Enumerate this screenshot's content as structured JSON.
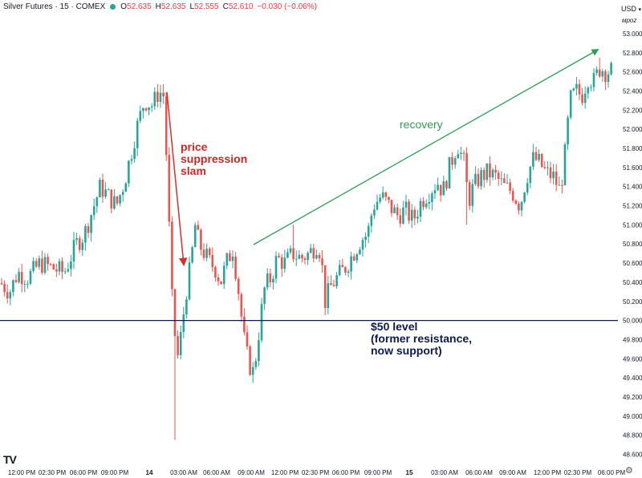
{
  "header": {
    "title": "Silver Futures · 15 · COMEX",
    "open_label": "O",
    "open": "52.635",
    "high_label": "H",
    "high": "52.635",
    "low_label": "L",
    "low": "52.555",
    "close_label": "C",
    "close": "52.610",
    "change": "−0.030 (−0.06%)"
  },
  "price_axis": {
    "currency": "USD",
    "mode_label": "мроz",
    "ticks": [
      "53.000",
      "52.800",
      "52.600",
      "52.400",
      "52.200",
      "52.000",
      "51.800",
      "51.600",
      "51.400",
      "51.200",
      "51.000",
      "50.800",
      "50.600",
      "50.400",
      "50.200",
      "50.000",
      "49.800",
      "49.600",
      "49.400",
      "49.200",
      "49.000",
      "48.800",
      "48.600"
    ]
  },
  "time_axis": {
    "ticks": [
      "12:00 PM",
      "02:30 PM",
      "06:00 PM",
      "09:00 PM",
      "14",
      "03:00 AM",
      "06:00 AM",
      "09:00 AM",
      "12:00 PM",
      "02:30 PM",
      "06:00 PM",
      "09:00 PM",
      "15",
      "03:00 AM",
      "06:00 AM",
      "09:00 AM",
      "12:00 PM",
      "02:30 PM",
      "06:00 PM"
    ]
  },
  "annotations": {
    "slam": "price\nsuppression\nslam",
    "recovery": "recovery",
    "level": "$50 level\n(former resistance,\nnow support)"
  },
  "branding": {
    "logo": "TV"
  },
  "colors": {
    "up": "#26a69a",
    "down": "#ef5350",
    "slam": "#d32f2f",
    "recovery": "#2e9e55",
    "level": "#0d1a4a",
    "axis_text": "#131722"
  },
  "chart_data": {
    "type": "candlestick",
    "title": "Silver Futures · 15 · COMEX",
    "ylim": [
      48.5,
      53.1
    ],
    "level_line": 50.0,
    "path": [
      [
        0,
        50.4
      ],
      [
        12,
        50.3
      ],
      [
        22,
        50.5
      ],
      [
        35,
        50.45
      ],
      [
        50,
        50.6
      ],
      [
        65,
        50.55
      ],
      [
        80,
        50.5
      ],
      [
        95,
        50.8
      ],
      [
        105,
        50.9
      ],
      [
        115,
        51.15
      ],
      [
        125,
        51.4
      ],
      [
        135,
        51.3
      ],
      [
        145,
        51.2
      ],
      [
        155,
        51.45
      ],
      [
        162,
        51.7
      ],
      [
        170,
        52.0
      ],
      [
        180,
        52.3
      ],
      [
        190,
        52.25
      ],
      [
        198,
        52.4
      ],
      [
        204,
        52.35
      ],
      [
        208,
        51.6
      ],
      [
        212,
        50.7
      ],
      [
        215,
        50.1
      ],
      [
        218,
        49.85
      ],
      [
        222,
        49.6
      ],
      [
        227,
        49.95
      ],
      [
        232,
        50.3
      ],
      [
        238,
        50.6
      ],
      [
        243,
        51.0
      ],
      [
        248,
        50.8
      ],
      [
        255,
        50.7
      ],
      [
        262,
        50.6
      ],
      [
        268,
        50.55
      ],
      [
        275,
        50.4
      ],
      [
        282,
        50.6
      ],
      [
        290,
        50.75
      ],
      [
        296,
        50.4
      ],
      [
        300,
        50.1
      ],
      [
        305,
        49.75
      ],
      [
        310,
        49.55
      ],
      [
        316,
        49.45
      ],
      [
        320,
        49.7
      ],
      [
        325,
        50.05
      ],
      [
        330,
        50.35
      ],
      [
        338,
        50.45
      ],
      [
        345,
        50.65
      ],
      [
        355,
        50.6
      ],
      [
        365,
        50.7
      ],
      [
        375,
        50.65
      ],
      [
        385,
        50.7
      ],
      [
        395,
        50.8
      ],
      [
        400,
        50.7
      ],
      [
        405,
        50.2
      ],
      [
        412,
        50.35
      ],
      [
        420,
        50.45
      ],
      [
        430,
        50.55
      ],
      [
        440,
        50.7
      ],
      [
        450,
        50.85
      ],
      [
        458,
        50.9
      ],
      [
        465,
        51.2
      ],
      [
        475,
        51.3
      ],
      [
        485,
        51.2
      ],
      [
        495,
        51.1
      ],
      [
        505,
        51.15
      ],
      [
        515,
        51.05
      ],
      [
        525,
        51.25
      ],
      [
        535,
        51.35
      ],
      [
        545,
        51.45
      ],
      [
        552,
        51.35
      ],
      [
        560,
        51.6
      ],
      [
        570,
        51.85
      ],
      [
        578,
        51.65
      ],
      [
        584,
        51.25
      ],
      [
        590,
        51.4
      ],
      [
        598,
        51.5
      ],
      [
        608,
        51.55
      ],
      [
        618,
        51.5
      ],
      [
        628,
        51.4
      ],
      [
        638,
        51.35
      ],
      [
        648,
        51.2
      ],
      [
        656,
        51.5
      ],
      [
        665,
        51.7
      ],
      [
        672,
        51.65
      ],
      [
        680,
        51.55
      ],
      [
        690,
        51.5
      ],
      [
        698,
        51.35
      ],
      [
        705,
        51.8
      ],
      [
        710,
        52.3
      ],
      [
        718,
        52.4
      ],
      [
        725,
        52.35
      ],
      [
        733,
        52.55
      ],
      [
        740,
        52.5
      ],
      [
        748,
        52.65
      ],
      [
        755,
        52.6
      ],
      [
        760,
        52.61
      ]
    ],
    "spikes": [
      {
        "x": 217,
        "low": 48.75
      },
      {
        "x": 366,
        "high": 51.0
      },
      {
        "x": 583,
        "low": 51.0
      },
      {
        "x": 727,
        "low": 52.25
      },
      {
        "x": 748,
        "high": 52.75
      }
    ]
  }
}
